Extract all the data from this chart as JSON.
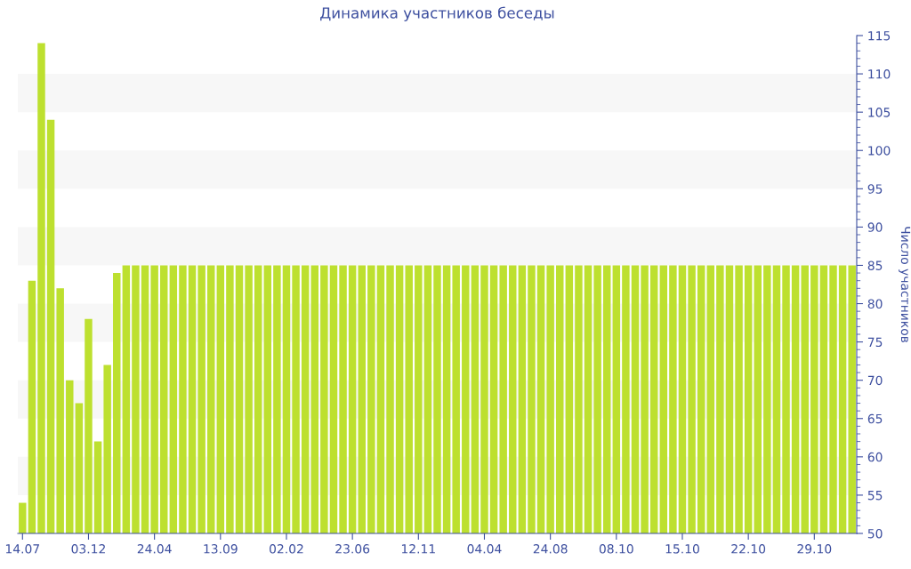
{
  "chart_data": {
    "type": "bar",
    "title": "Динамика участников беседы",
    "ylabel": "Число участников",
    "categories": [
      "14.07",
      null,
      null,
      null,
      null,
      null,
      null,
      "03.12",
      null,
      null,
      null,
      null,
      null,
      null,
      "24.04",
      null,
      null,
      null,
      null,
      null,
      null,
      "13.09",
      null,
      null,
      null,
      null,
      null,
      null,
      "02.02",
      null,
      null,
      null,
      null,
      null,
      null,
      "23.06",
      null,
      null,
      null,
      null,
      null,
      null,
      "12.11",
      null,
      null,
      null,
      null,
      null,
      null,
      "04.04",
      null,
      null,
      null,
      null,
      null,
      null,
      "24.08",
      null,
      null,
      null,
      null,
      null,
      null,
      "08.10",
      null,
      null,
      null,
      null,
      null,
      null,
      "15.10",
      null,
      null,
      null,
      null,
      null,
      null,
      "22.10",
      null,
      null,
      null,
      null,
      null,
      null,
      "29.10",
      null,
      null,
      null,
      null
    ],
    "values": [
      54,
      83,
      114,
      104,
      82,
      70,
      67,
      78,
      62,
      72,
      84,
      85,
      85,
      85,
      85,
      85,
      85,
      85,
      85,
      85,
      85,
      85,
      85,
      85,
      85,
      85,
      85,
      85,
      85,
      85,
      85,
      85,
      85,
      85,
      85,
      85,
      85,
      85,
      85,
      85,
      85,
      85,
      85,
      85,
      85,
      85,
      85,
      85,
      85,
      85,
      85,
      85,
      85,
      85,
      85,
      85,
      85,
      85,
      85,
      85,
      85,
      85,
      85,
      85,
      85,
      85,
      85,
      85,
      85,
      85,
      85,
      85,
      85,
      85,
      85,
      85,
      85,
      85,
      85,
      85,
      85,
      85,
      85,
      85,
      85,
      85,
      85,
      85,
      85
    ],
    "color": "#bde02f",
    "ylim": [
      50,
      115
    ],
    "yticks": [
      50,
      55,
      60,
      65,
      70,
      75,
      80,
      85,
      90,
      95,
      100,
      105,
      110,
      115
    ],
    "bands": [
      {
        "axis": "y",
        "from": 55,
        "to": 60,
        "color": "#f7f7f7"
      },
      {
        "axis": "y",
        "from": 65,
        "to": 70,
        "color": "#f7f7f7"
      },
      {
        "axis": "y",
        "from": 75,
        "to": 80,
        "color": "#f7f7f7"
      },
      {
        "axis": "y",
        "from": 85,
        "to": 90,
        "color": "#f7f7f7"
      },
      {
        "axis": "y",
        "from": 95,
        "to": 100,
        "color": "#f7f7f7"
      },
      {
        "axis": "y",
        "from": 105,
        "to": 110,
        "color": "#f7f7f7"
      }
    ]
  }
}
